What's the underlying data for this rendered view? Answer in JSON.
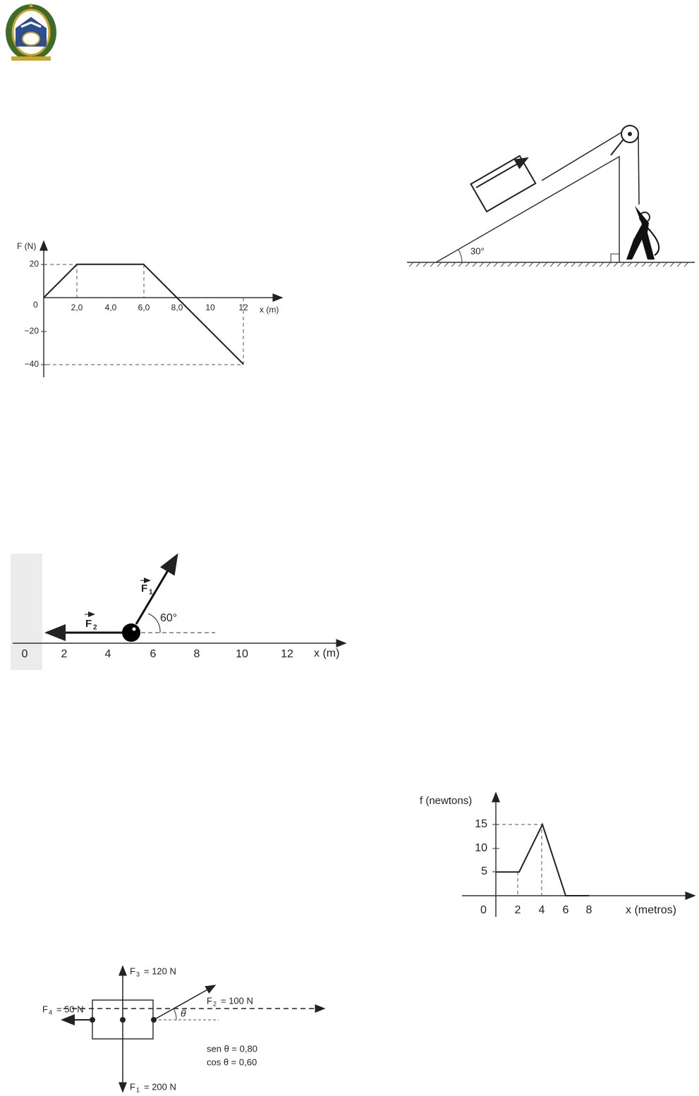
{
  "graph1": {
    "y_axis_label": "F (N)",
    "x_axis_label": "x (m)",
    "origin_label": "0",
    "x_ticks": [
      "2,0",
      "4,0",
      "6,0",
      "8,0",
      "10",
      "12"
    ],
    "y_ticks": [
      "20",
      "−20",
      "−40"
    ],
    "points": {
      "x": [
        0,
        2,
        6,
        8,
        12
      ],
      "y": [
        0,
        20,
        20,
        0,
        -40
      ]
    }
  },
  "incline": {
    "angle_label": "30°"
  },
  "number_line": {
    "ticks": [
      "0",
      "2",
      "4",
      "6",
      "8",
      "10",
      "12"
    ],
    "axis_label": "x (m)",
    "f1": {
      "symbol": "F",
      "index": "1"
    },
    "f2": {
      "symbol": "F",
      "index": "2"
    },
    "angle_label": "60°"
  },
  "graph2": {
    "y_axis_label": "f (newtons)",
    "x_axis_label": "x (metros)",
    "origin_label": "0",
    "x_ticks": [
      "2",
      "4",
      "6",
      "8"
    ],
    "y_ticks": [
      "15",
      "10",
      "5"
    ],
    "points": {
      "x": [
        0,
        2,
        4,
        6,
        8
      ],
      "y": [
        5,
        5,
        15,
        0,
        0
      ]
    }
  },
  "forces": {
    "f3": {
      "symbol": "F",
      "index": "3",
      "rest": "= 120 N"
    },
    "f2": {
      "symbol": "F",
      "index": "2",
      "rest": "= 100 N"
    },
    "f4": {
      "symbol": "F",
      "index": "4",
      "rest": "= 50 N"
    },
    "f1": {
      "symbol": "F",
      "index": "1",
      "rest": "= 200 N"
    },
    "theta": "θ",
    "sen": "sen  θ = 0,80",
    "cos": "cos θ = 0,60"
  }
}
